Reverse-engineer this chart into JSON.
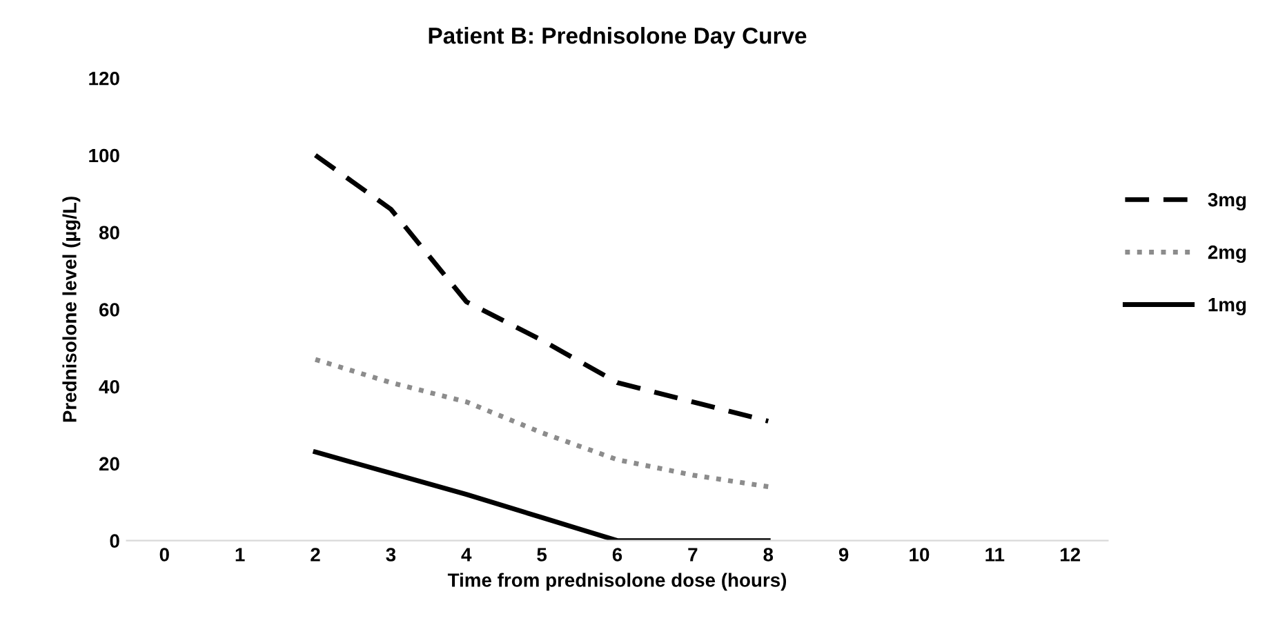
{
  "chart_data": {
    "type": "line",
    "title": "Patient B: Prednisolone Day Curve",
    "xlabel": "Time from prednisolone dose (hours)",
    "ylabel": "Prednisolone level (µg/L)",
    "x": [
      2,
      3,
      4,
      5,
      6,
      7,
      8
    ],
    "series": [
      {
        "name": "3mg",
        "color": "#000000",
        "line_style": "dashed",
        "values": [
          100,
          86,
          62,
          52,
          41,
          36,
          31
        ]
      },
      {
        "name": "2mg",
        "color": "#8c8c8c",
        "line_style": "dotted",
        "values": [
          47,
          41,
          36,
          28,
          21,
          17,
          14
        ]
      },
      {
        "name": "1mg",
        "color": "#000000",
        "line_style": "solid",
        "values": [
          23,
          17.5,
          12,
          6,
          0,
          0,
          0
        ]
      }
    ],
    "xlim": [
      -0.5,
      12.5
    ],
    "xticks": [
      0,
      1,
      2,
      3,
      4,
      5,
      6,
      7,
      8,
      9,
      10,
      11,
      12
    ],
    "ylim": [
      0,
      120
    ],
    "yticks": [
      0,
      20,
      40,
      60,
      80,
      100,
      120
    ],
    "grid": false,
    "legend": "right",
    "marker": "none"
  }
}
